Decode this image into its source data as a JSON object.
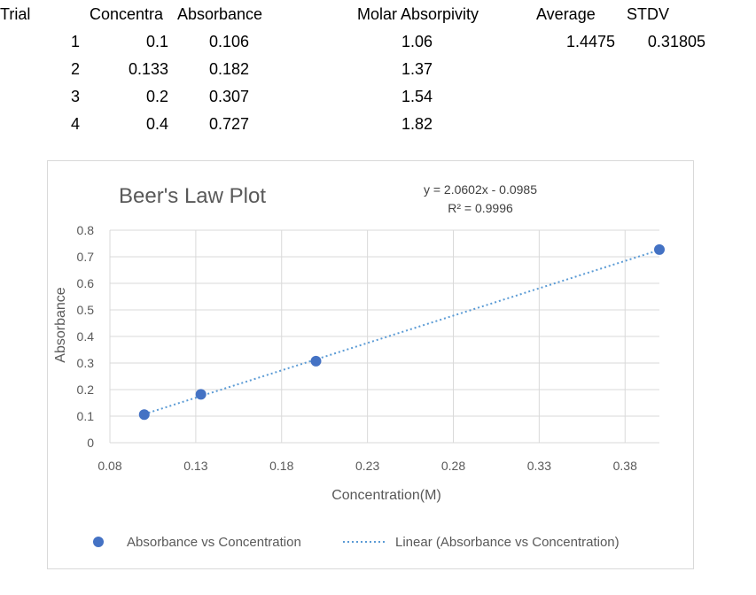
{
  "table": {
    "headers": {
      "trial": "Trial",
      "concentration": "Concentra",
      "absorbance": "Absorbance",
      "molar_absorptivity": "Molar Absorpivity",
      "average": "Average",
      "stdv": "STDV"
    },
    "rows": [
      {
        "trial": "1",
        "concentration": "0.1",
        "absorbance": "0.106",
        "molar": "1.06"
      },
      {
        "trial": "2",
        "concentration": "0.133",
        "absorbance": "0.182",
        "molar": "1.37"
      },
      {
        "trial": "3",
        "concentration": "0.2",
        "absorbance": "0.307",
        "molar": "1.54"
      },
      {
        "trial": "4",
        "concentration": "0.4",
        "absorbance": "0.727",
        "molar": "1.82"
      }
    ],
    "average_value": "1.4475",
    "stdv_value": "0.31805"
  },
  "chart_data": {
    "type": "scatter",
    "title": "Beer's Law Plot",
    "xlabel": "Concentration(M)",
    "ylabel": "Absorbance",
    "xlim": [
      0.08,
      0.4
    ],
    "ylim": [
      0,
      0.8
    ],
    "x_ticks": [
      "0.08",
      "0.13",
      "0.18",
      "0.23",
      "0.28",
      "0.33",
      "0.38"
    ],
    "y_ticks": [
      "0",
      "0.1",
      "0.2",
      "0.3",
      "0.4",
      "0.5",
      "0.6",
      "0.7",
      "0.8"
    ],
    "grid": true,
    "legend_position": "bottom",
    "series": [
      {
        "name": "Absorbance vs Concentration",
        "x": [
          0.1,
          0.133,
          0.2,
          0.4
        ],
        "y": [
          0.106,
          0.182,
          0.307,
          0.727
        ],
        "color": "#4472c4"
      }
    ],
    "trendline": {
      "name": "Linear (Absorbance vs Concentration)",
      "slope": 2.0602,
      "intercept": -0.0985,
      "x_range": [
        0.1,
        0.4
      ],
      "equation": "y = 2.0602x - 0.0985",
      "r_squared": "R² = 0.9996",
      "color": "#5b9bd5"
    }
  }
}
